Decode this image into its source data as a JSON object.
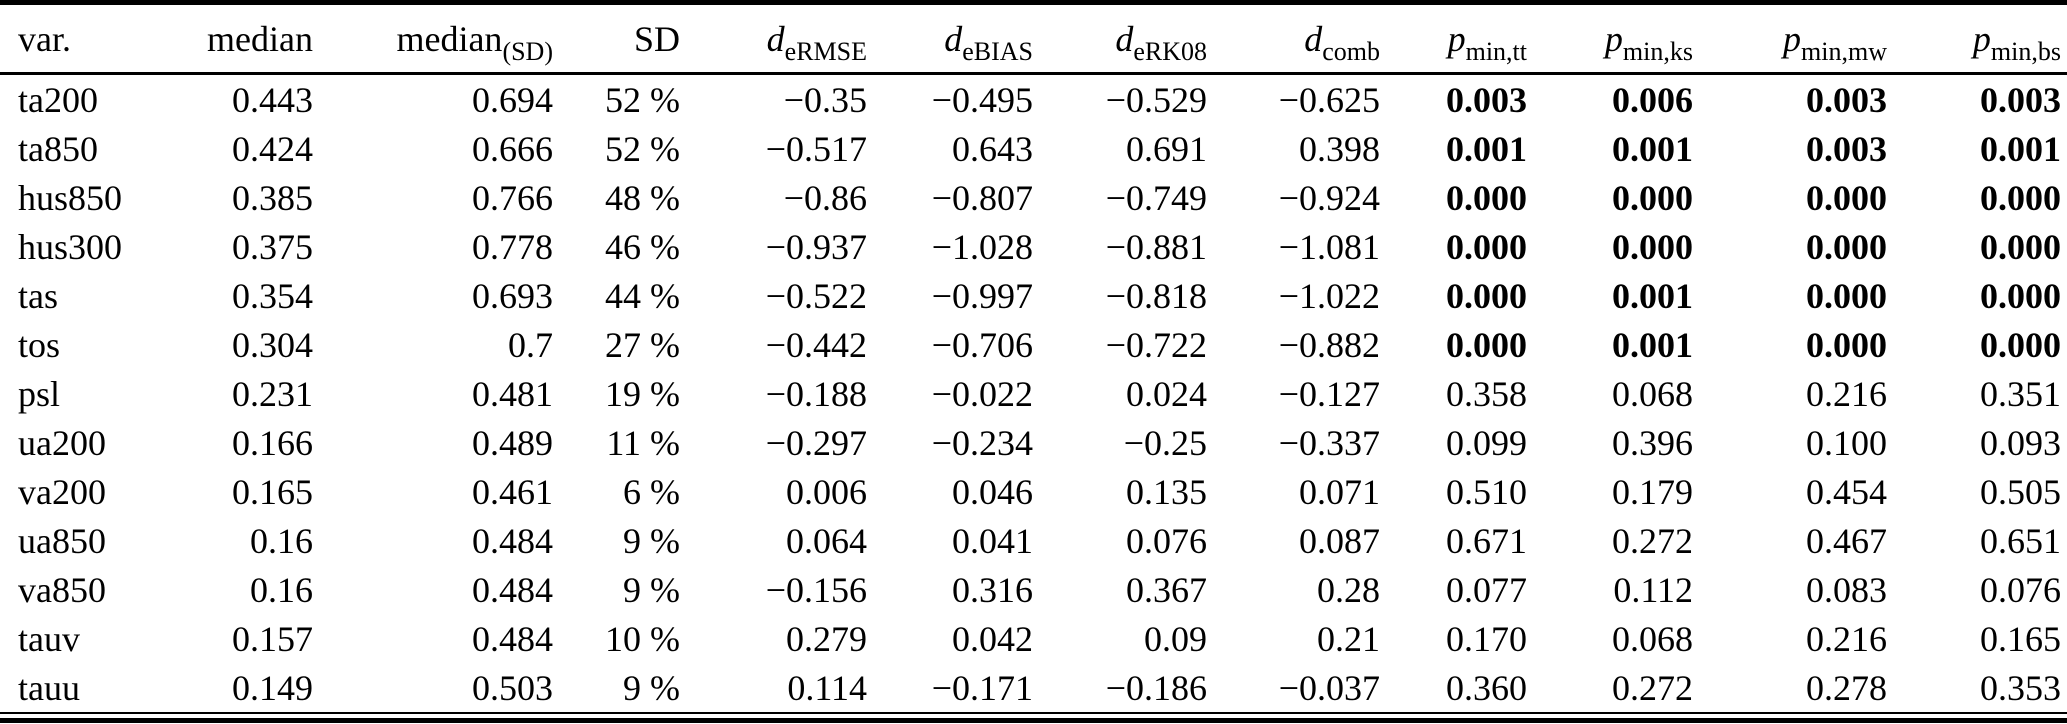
{
  "table": {
    "columns": [
      {
        "id": "var",
        "label": "var.",
        "sub": "",
        "italic": false,
        "align": "left"
      },
      {
        "id": "median",
        "label": "median",
        "sub": "",
        "italic": false,
        "align": "right"
      },
      {
        "id": "median_sd",
        "label": "median",
        "sub": "(SD)",
        "italic": false,
        "align": "right"
      },
      {
        "id": "sd",
        "label": "SD",
        "sub": "",
        "italic": false,
        "align": "right"
      },
      {
        "id": "d_ermse",
        "label": "d",
        "sub": "eRMSE",
        "italic": true,
        "align": "right"
      },
      {
        "id": "d_ebias",
        "label": "d",
        "sub": "eBIAS",
        "italic": true,
        "align": "right"
      },
      {
        "id": "d_erk08",
        "label": "d",
        "sub": "eRK08",
        "italic": true,
        "align": "right"
      },
      {
        "id": "d_comb",
        "label": "d",
        "sub": "comb",
        "italic": true,
        "align": "right"
      },
      {
        "id": "p_min_tt",
        "label": "p",
        "sub": "min,tt",
        "italic": true,
        "align": "right"
      },
      {
        "id": "p_min_ks",
        "label": "p",
        "sub": "min,ks",
        "italic": true,
        "align": "right"
      },
      {
        "id": "p_min_mw",
        "label": "p",
        "sub": "min,mw",
        "italic": true,
        "align": "right"
      },
      {
        "id": "p_min_bs",
        "label": "p",
        "sub": "min,bs",
        "italic": true,
        "align": "right"
      }
    ],
    "rows": [
      {
        "p_bold": true,
        "cells": [
          "ta200",
          "0.443",
          "0.694",
          "52 %",
          "−0.35",
          "−0.495",
          "−0.529",
          "−0.625",
          "0.003",
          "0.006",
          "0.003",
          "0.003"
        ]
      },
      {
        "p_bold": true,
        "cells": [
          "ta850",
          "0.424",
          "0.666",
          "52 %",
          "−0.517",
          "0.643",
          "0.691",
          "0.398",
          "0.001",
          "0.001",
          "0.003",
          "0.001"
        ]
      },
      {
        "p_bold": true,
        "cells": [
          "hus850",
          "0.385",
          "0.766",
          "48 %",
          "−0.86",
          "−0.807",
          "−0.749",
          "−0.924",
          "0.000",
          "0.000",
          "0.000",
          "0.000"
        ]
      },
      {
        "p_bold": true,
        "cells": [
          "hus300",
          "0.375",
          "0.778",
          "46 %",
          "−0.937",
          "−1.028",
          "−0.881",
          "−1.081",
          "0.000",
          "0.000",
          "0.000",
          "0.000"
        ]
      },
      {
        "p_bold": true,
        "cells": [
          "tas",
          "0.354",
          "0.693",
          "44 %",
          "−0.522",
          "−0.997",
          "−0.818",
          "−1.022",
          "0.000",
          "0.001",
          "0.000",
          "0.000"
        ]
      },
      {
        "p_bold": true,
        "cells": [
          "tos",
          "0.304",
          "0.7",
          "27 %",
          "−0.442",
          "−0.706",
          "−0.722",
          "−0.882",
          "0.000",
          "0.001",
          "0.000",
          "0.000"
        ]
      },
      {
        "p_bold": false,
        "cells": [
          "psl",
          "0.231",
          "0.481",
          "19 %",
          "−0.188",
          "−0.022",
          "0.024",
          "−0.127",
          "0.358",
          "0.068",
          "0.216",
          "0.351"
        ]
      },
      {
        "p_bold": false,
        "cells": [
          "ua200",
          "0.166",
          "0.489",
          "11 %",
          "−0.297",
          "−0.234",
          "−0.25",
          "−0.337",
          "0.099",
          "0.396",
          "0.100",
          "0.093"
        ]
      },
      {
        "p_bold": false,
        "cells": [
          "va200",
          "0.165",
          "0.461",
          "6 %",
          "0.006",
          "0.046",
          "0.135",
          "0.071",
          "0.510",
          "0.179",
          "0.454",
          "0.505"
        ]
      },
      {
        "p_bold": false,
        "cells": [
          "ua850",
          "0.16",
          "0.484",
          "9 %",
          "0.064",
          "0.041",
          "0.076",
          "0.087",
          "0.671",
          "0.272",
          "0.467",
          "0.651"
        ]
      },
      {
        "p_bold": false,
        "cells": [
          "va850",
          "0.16",
          "0.484",
          "9 %",
          "−0.156",
          "0.316",
          "0.367",
          "0.28",
          "0.077",
          "0.112",
          "0.083",
          "0.076"
        ]
      },
      {
        "p_bold": false,
        "cells": [
          "tauv",
          "0.157",
          "0.484",
          "10 %",
          "0.279",
          "0.042",
          "0.09",
          "0.21",
          "0.170",
          "0.068",
          "0.216",
          "0.165"
        ]
      },
      {
        "p_bold": false,
        "cells": [
          "tauu",
          "0.149",
          "0.503",
          "9 %",
          "0.114",
          "−0.171",
          "−0.186",
          "−0.037",
          "0.360",
          "0.272",
          "0.278",
          "0.353"
        ]
      }
    ],
    "p_bold_col_start": 8
  }
}
